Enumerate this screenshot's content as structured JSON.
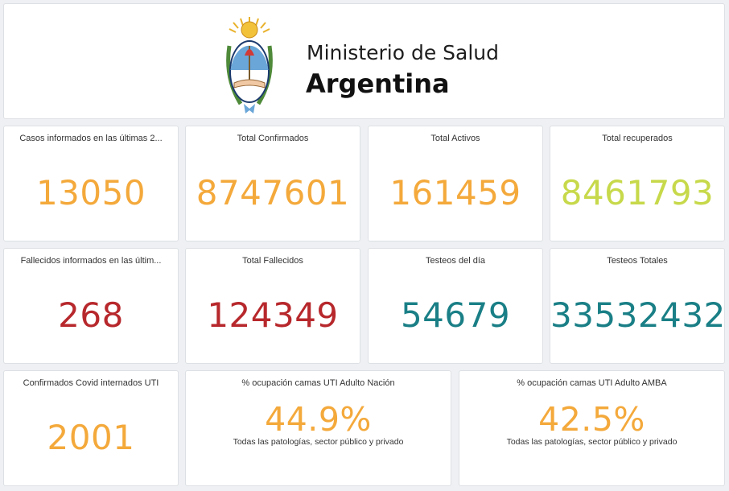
{
  "header": {
    "ministry": "Ministerio de Salud",
    "country": "Argentina"
  },
  "colors": {
    "orange": "#f4a93b",
    "lime": "#c7d94a",
    "red": "#b7282c",
    "teal": "#1a7f86"
  },
  "cards": [
    {
      "title": "Casos informados en las últimas 2...",
      "value": "13050"
    },
    {
      "title": "Total Confirmados",
      "value": "8747601"
    },
    {
      "title": "Total Activos",
      "value": "161459"
    },
    {
      "title": "Total recuperados",
      "value": "8461793"
    },
    {
      "title": "Fallecidos informados en las últim...",
      "value": "268"
    },
    {
      "title": "Total Fallecidos",
      "value": "124349"
    },
    {
      "title": "Testeos del día",
      "value": "54679"
    },
    {
      "title": "Testeos Totales",
      "value": "33532432"
    },
    {
      "title": "Confirmados Covid internados UTI",
      "value": "2001"
    },
    {
      "title": "% ocupación camas UTI Adulto Nación",
      "value": "44.9%",
      "subtitle": "Todas las patologías, sector público y privado"
    },
    {
      "title": "% ocupación camas UTI Adulto AMBA",
      "value": "42.5%",
      "subtitle": "Todas las patologías, sector público y privado"
    }
  ]
}
